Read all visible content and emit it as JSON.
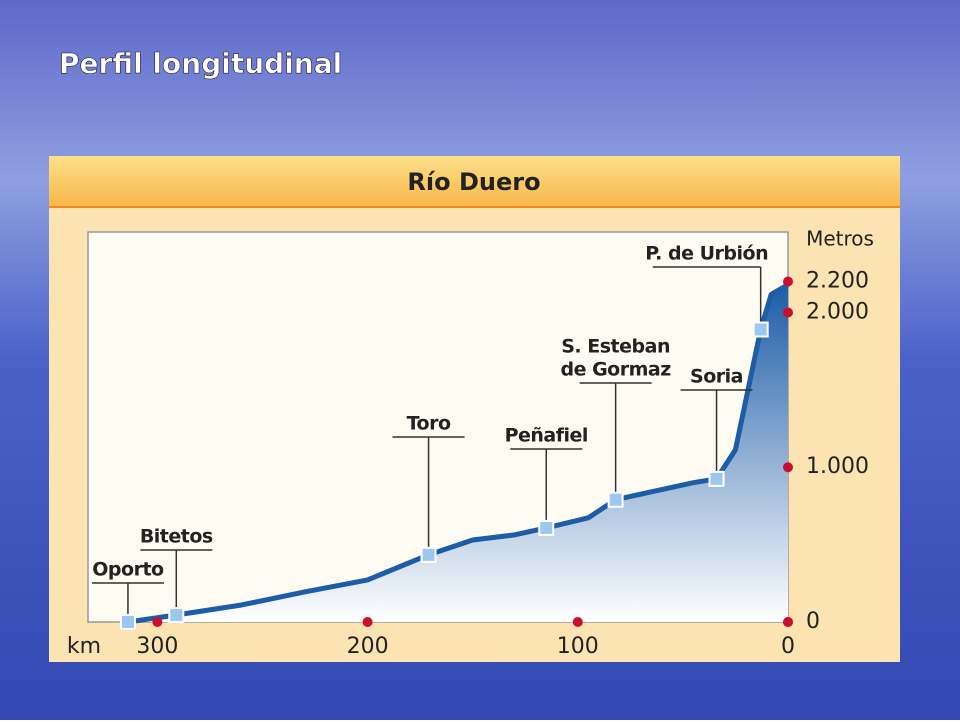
{
  "heading": "Perfil longitudinal",
  "chart_data": {
    "type": "area",
    "title": "Río Duero",
    "x_label": "km",
    "y_label": "Metros",
    "xlim": [
      333,
      0
    ],
    "ylim": [
      0,
      2520
    ],
    "xticks": [
      300,
      200,
      100,
      0
    ],
    "yticks": [
      0,
      {
        "value": 1000,
        "label": "1.000"
      },
      {
        "value": 2000,
        "label": "2.000"
      },
      {
        "value": 2200,
        "label": "2.200"
      }
    ],
    "color": "#1d5ca6",
    "x": [
      314,
      291,
      260,
      230,
      200,
      171,
      150,
      130,
      115,
      95,
      82,
      65,
      45,
      34,
      25,
      20,
      13,
      8,
      0
    ],
    "values": [
      0,
      45,
      110,
      194,
      272,
      434,
      530,
      563,
      608,
      673,
      790,
      841,
      900,
      925,
      1113,
      1437,
      1890,
      2117,
      2180
    ],
    "annotations": [
      {
        "label": [
          "Oporto"
        ],
        "x": 314,
        "y": 0
      },
      {
        "label": [
          "Bitetos"
        ],
        "x": 291,
        "y": 45
      },
      {
        "label": [
          "Toro"
        ],
        "x": 171,
        "y": 434
      },
      {
        "label": [
          "Peñafiel"
        ],
        "x": 115,
        "y": 608
      },
      {
        "label": [
          "S. Esteban",
          "de Gormaz"
        ],
        "x": 82,
        "y": 790
      },
      {
        "label": [
          "Soria"
        ],
        "x": 34,
        "y": 925
      },
      {
        "label": [
          "P. de Urbión"
        ],
        "x": 13,
        "y": 1890
      }
    ]
  }
}
